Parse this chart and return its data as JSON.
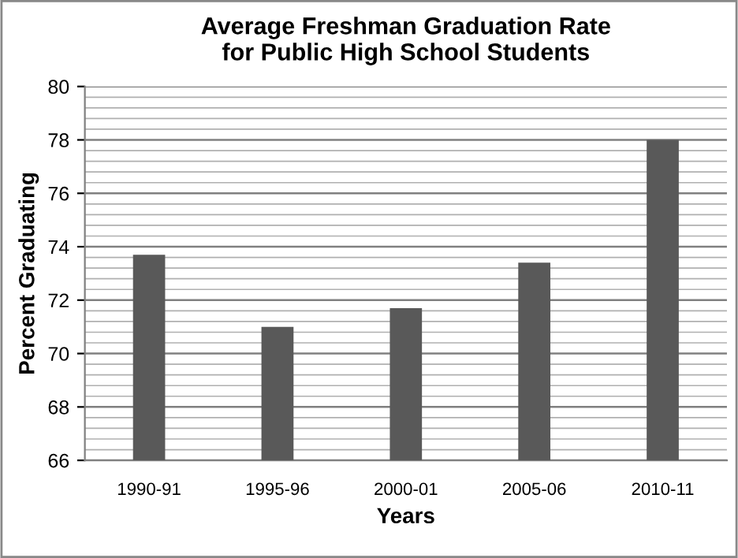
{
  "chart_data": {
    "type": "bar",
    "title": "Average Freshman Graduation Rate\nfor Public High School Students",
    "xlabel": "Years",
    "ylabel": "Percent Graduating",
    "categories": [
      "1990-91",
      "1995-96",
      "2000-01",
      "2005-06",
      "2010-11"
    ],
    "values": [
      73.7,
      71.0,
      71.7,
      73.4,
      78.0
    ],
    "color": "#595959",
    "ylim": [
      66,
      80
    ],
    "yticks": [
      66,
      68,
      70,
      72,
      74,
      76,
      78,
      80
    ],
    "grid": "y",
    "legend": false
  }
}
